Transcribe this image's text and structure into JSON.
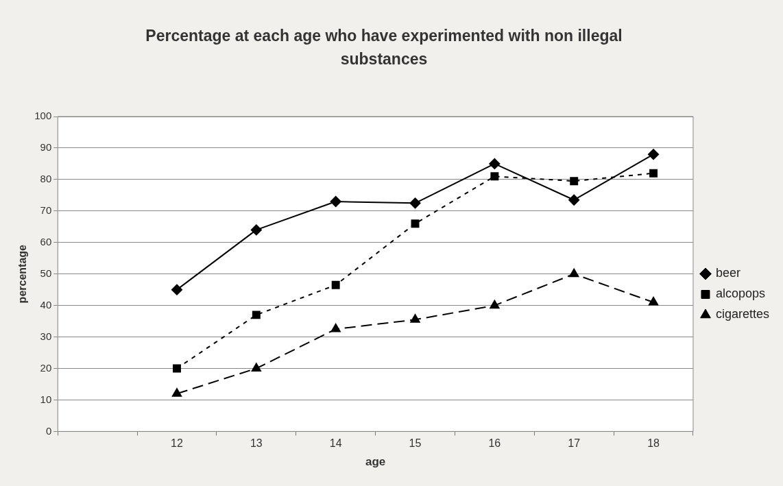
{
  "chart_data": {
    "type": "line",
    "title": "Percentage at each age who have experimented with non illegal substances",
    "xlabel": "age",
    "ylabel": "percentage",
    "categories": [
      null,
      "12",
      "13",
      "14",
      "15",
      "16",
      "17",
      "18"
    ],
    "series": [
      {
        "name": "beer",
        "color": "#000000",
        "marker": "diamond",
        "line_style": "solid",
        "values": [
          null,
          45,
          64,
          73,
          72.5,
          85,
          73.5,
          88
        ]
      },
      {
        "name": "alcopops",
        "color": "#000000",
        "marker": "square",
        "line_style": "dotted",
        "values": [
          null,
          20,
          37,
          46.5,
          66,
          81,
          79.5,
          82
        ]
      },
      {
        "name": "cigarettes",
        "color": "#000000",
        "marker": "triangle",
        "line_style": "dashed",
        "values": [
          null,
          12,
          20,
          32.5,
          35.5,
          40,
          50,
          41
        ]
      }
    ],
    "ylim": [
      0,
      100
    ],
    "yticks": [
      0,
      10,
      20,
      30,
      40,
      50,
      60,
      70,
      80,
      90,
      100
    ],
    "grid": "y",
    "legend": "right"
  }
}
